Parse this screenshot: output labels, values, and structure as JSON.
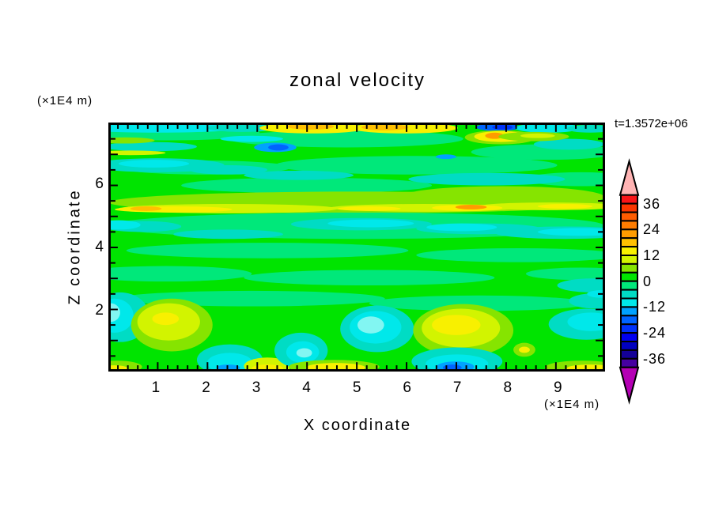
{
  "chart_data": {
    "type": "heatmap",
    "title": "zonal velocity",
    "timestamp": "t=1.3572e+06",
    "xlabel": "X coordinate",
    "ylabel": "Z coordinate",
    "x_units": "(×1E4 m)",
    "y_units": "(×1E4 m)",
    "xlim": [
      0.056,
      9.94
    ],
    "ylim": [
      0.075,
      7.95
    ],
    "x_tick_labels": [
      "1",
      "2",
      "3",
      "4",
      "5",
      "6",
      "7",
      "8",
      "9"
    ],
    "x_tick_values": [
      1,
      2,
      3,
      4,
      5,
      6,
      7,
      8,
      9
    ],
    "x_minor_step": 0.2,
    "y_tick_labels": [
      "2",
      "4",
      "6"
    ],
    "y_tick_values": [
      2,
      4,
      6
    ],
    "y_integer_tick_values": [
      1,
      2,
      3,
      4,
      5,
      6,
      7
    ],
    "y_minor_step": 0.5,
    "grid": false,
    "colorbar": {
      "position": "right",
      "value_min": -40,
      "value_max": 40,
      "contour_interval": 4,
      "labels": [
        "36",
        "24",
        "12",
        "0",
        "-12",
        "-24",
        "-36"
      ],
      "label_values": [
        36,
        24,
        12,
        0,
        -12,
        -24,
        -36
      ],
      "segments_top_to_bottom": [
        "#f81418",
        "#fb3600",
        "#ff5c00",
        "#ff7c00",
        "#ff9c00",
        "#ffc000",
        "#f8f000",
        "#d2f400",
        "#86e400",
        "#00e400",
        "#00e87a",
        "#00dcc4",
        "#00e8ea",
        "#00a2ff",
        "#0064ff",
        "#0032fa",
        "#0000f0",
        "#0000c0",
        "#140096",
        "#4600a0"
      ],
      "over_arrow_color": "#ffb4b4",
      "under_arrow_color": "#b400b4"
    },
    "field": {
      "base_color": "#00e400",
      "palette": {
        "G2": "#00e87a",
        "T": "#00dcc4",
        "C": "#00e8ea",
        "LC": "#82f6f2",
        "GY": "#86e400",
        "YG": "#d2f400",
        "Y": "#f8f000",
        "O": "#ffc000",
        "O2": "#ff9c00",
        "B1": "#00a2ff",
        "B2": "#0064ff",
        "B3": "#0032fa"
      },
      "blobs": [
        [
          "G2",
          70,
          10,
          120,
          10
        ],
        [
          "G2",
          300,
          18,
          150,
          11
        ],
        [
          "G2",
          555,
          35,
          95,
          10
        ],
        [
          "G2",
          120,
          55,
          110,
          9
        ],
        [
          "G2",
          390,
          52,
          180,
          12
        ],
        [
          "G2",
          250,
          78,
          160,
          10
        ],
        [
          "G2",
          600,
          70,
          70,
          9
        ],
        [
          "T",
          60,
          52,
          85,
          9
        ],
        [
          "C",
          55,
          50,
          45,
          5
        ],
        [
          "T",
          150,
          58,
          50,
          6
        ],
        [
          "T",
          480,
          70,
          100,
          8
        ],
        [
          "T",
          240,
          65,
          70,
          6
        ],
        [
          "T",
          585,
          25,
          45,
          7
        ],
        [
          "C",
          180,
          18,
          40,
          4
        ],
        [
          "T",
          50,
          28,
          60,
          6
        ],
        [
          "C",
          60,
          3,
          115,
          7
        ],
        [
          "T",
          168,
          4,
          45,
          5
        ],
        [
          "Y",
          258,
          4,
          68,
          7
        ],
        [
          "O",
          255,
          2,
          30,
          4
        ],
        [
          "Y",
          375,
          4,
          68,
          7
        ],
        [
          "O",
          350,
          3,
          30,
          4
        ],
        [
          "B2",
          494,
          3,
          27,
          5
        ],
        [
          "B3",
          500,
          3,
          13,
          3
        ],
        [
          "C",
          558,
          4,
          42,
          6
        ],
        [
          "T",
          612,
          5,
          30,
          5
        ],
        [
          "GY",
          498,
          16,
          46,
          9
        ],
        [
          "Y",
          498,
          15,
          34,
          7
        ],
        [
          "O2",
          490,
          14,
          12,
          4
        ],
        [
          "GY",
          540,
          15,
          45,
          6
        ],
        [
          "YG",
          545,
          14,
          22,
          3
        ],
        [
          "GY",
          18,
          20,
          38,
          4
        ],
        [
          "YG",
          25,
          36,
          45,
          3
        ],
        [
          "B1",
          210,
          29,
          27,
          6
        ],
        [
          "B2",
          214,
          29,
          13,
          4
        ],
        [
          "B1",
          428,
          41,
          13,
          3
        ],
        [
          "GY",
          314,
          100,
          316,
          14
        ],
        [
          "GY",
          500,
          93,
          130,
          14
        ],
        [
          "YG",
          150,
          108,
          140,
          6
        ],
        [
          "YG",
          400,
          107,
          120,
          5
        ],
        [
          "YG",
          560,
          105,
          90,
          5
        ],
        [
          "Y",
          80,
          109,
          75,
          4
        ],
        [
          "O",
          45,
          108,
          20,
          3
        ],
        [
          "Y",
          330,
          108,
          40,
          3
        ],
        [
          "Y",
          455,
          107,
          45,
          4
        ],
        [
          "O2",
          460,
          106,
          20,
          3
        ],
        [
          "Y",
          580,
          105,
          35,
          3
        ],
        [
          "G2",
          314,
          130,
          316,
          17
        ],
        [
          "T",
          320,
          128,
          90,
          8
        ],
        [
          "C",
          332,
          127,
          55,
          5
        ],
        [
          "T",
          470,
          134,
          80,
          7
        ],
        [
          "C",
          448,
          132,
          45,
          5
        ],
        [
          "T",
          580,
          139,
          90,
          8
        ],
        [
          "C",
          600,
          138,
          55,
          5
        ],
        [
          "T",
          150,
          141,
          70,
          6
        ],
        [
          "T",
          40,
          131,
          50,
          7
        ],
        [
          "C",
          10,
          129,
          28,
          6
        ],
        [
          "G2",
          200,
          162,
          180,
          10
        ],
        [
          "G2",
          520,
          168,
          130,
          9
        ],
        [
          "G2",
          70,
          192,
          110,
          10
        ],
        [
          "G2",
          330,
          197,
          160,
          10
        ],
        [
          "G2",
          600,
          192,
          70,
          8
        ],
        [
          "G2",
          180,
          224,
          170,
          10
        ],
        [
          "G2",
          470,
          230,
          140,
          10
        ],
        [
          "T",
          615,
          207,
          45,
          9
        ],
        [
          "T",
          620,
          227,
          35,
          10
        ],
        [
          "C",
          628,
          218,
          20,
          5
        ],
        [
          "T",
          12,
          248,
          38,
          32
        ],
        [
          "C",
          5,
          246,
          24,
          22
        ],
        [
          "LC",
          0,
          242,
          12,
          12
        ],
        [
          "GY",
          78,
          258,
          52,
          34
        ],
        [
          "YG",
          74,
          254,
          40,
          24
        ],
        [
          "Y",
          70,
          250,
          17,
          8
        ],
        [
          "T",
          152,
          303,
          42,
          20
        ],
        [
          "C",
          152,
          307,
          29,
          13
        ],
        [
          "B1",
          150,
          313,
          15,
          4
        ],
        [
          "YG",
          200,
          311,
          30,
          11
        ],
        [
          "Y",
          200,
          314,
          20,
          5
        ],
        [
          "T",
          243,
          291,
          34,
          23
        ],
        [
          "C",
          245,
          293,
          21,
          14
        ],
        [
          "LC",
          247,
          294,
          10,
          6
        ],
        [
          "GY",
          285,
          312,
          58,
          9
        ],
        [
          "Y",
          287,
          313,
          38,
          6
        ],
        [
          "T",
          340,
          263,
          47,
          30
        ],
        [
          "C",
          338,
          261,
          33,
          21
        ],
        [
          "LC",
          332,
          258,
          17,
          11
        ],
        [
          "GY",
          450,
          265,
          64,
          34
        ],
        [
          "YG",
          447,
          262,
          50,
          25
        ],
        [
          "Y",
          441,
          258,
          31,
          13
        ],
        [
          "GY",
          528,
          290,
          14,
          9
        ],
        [
          "Y",
          528,
          290,
          7,
          4
        ],
        [
          "T",
          442,
          305,
          58,
          18
        ],
        [
          "C",
          442,
          308,
          40,
          12
        ],
        [
          "B1",
          440,
          312,
          24,
          7
        ],
        [
          "B2",
          436,
          313,
          12,
          4
        ],
        [
          "T",
          607,
          257,
          48,
          20
        ],
        [
          "C",
          613,
          254,
          30,
          12
        ],
        [
          "GY",
          602,
          313,
          48,
          9
        ],
        [
          "Y",
          612,
          314,
          30,
          5
        ],
        [
          "GY",
          8,
          312,
          32,
          8
        ],
        [
          "Y",
          4,
          314,
          18,
          4
        ]
      ]
    }
  }
}
